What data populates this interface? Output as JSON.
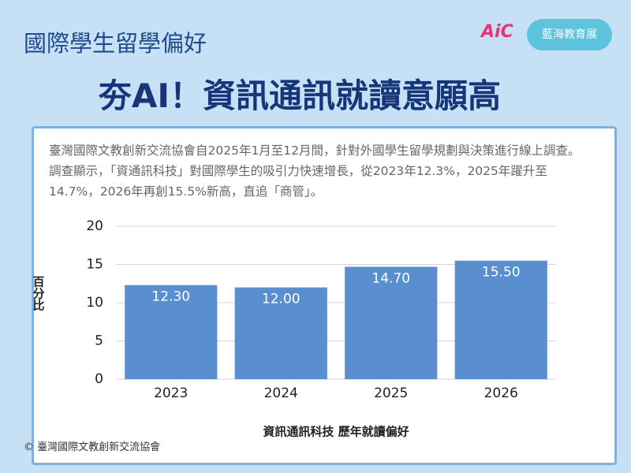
{
  "header": {
    "subtitle": "國際學生留學偏好",
    "title": "夯AI！資訊通訊就讀意願高",
    "logo": "AiC",
    "button": "藍海教育展"
  },
  "description": "臺灣國際文教創新交流協會自2025年1月至12月間，針對外國學生留學規劃與決策進行線上調查。調查顯示，「資通訊科技」對國際學生的吸引力快速增長，從2023年12.3%，2025年躍升至14.7%，2026年再創15.5%新高，直追「商管」。",
  "footer": "© 臺灣國際文教創新交流協會",
  "chart_data": {
    "type": "bar",
    "x_label": "資訊通訊科技 歷年就讀偏好",
    "y_label": "百分比",
    "categories": [
      "2023",
      "2024",
      "2025",
      "2026"
    ],
    "values": [
      12.3,
      12.0,
      14.7,
      15.5
    ],
    "value_labels": [
      "12.30",
      "12.00",
      "14.70",
      "15.50"
    ],
    "color": "#5a8fcf",
    "ylim": [
      0,
      20
    ],
    "yticks": [
      0,
      5,
      10,
      15,
      20
    ],
    "grid": true
  }
}
